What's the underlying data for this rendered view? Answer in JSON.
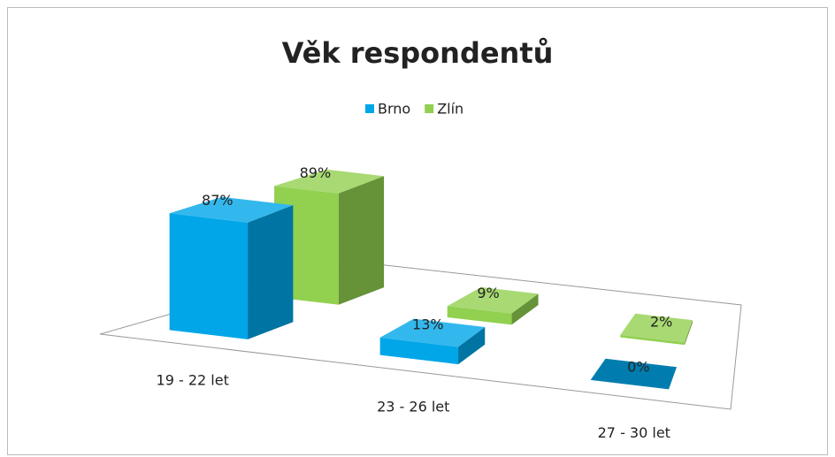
{
  "chart_data": {
    "type": "bar3d",
    "title": "Věk respondentů",
    "categories": [
      "19 - 22 let",
      "23 - 26 let",
      "27 - 30 let"
    ],
    "series": [
      {
        "name": "Brno",
        "color": "#00a6e8",
        "values": [
          87,
          13,
          0
        ],
        "value_labels": [
          "87%",
          "13%",
          "0%"
        ]
      },
      {
        "name": "Zlín",
        "color": "#92d050",
        "values": [
          89,
          9,
          2
        ],
        "value_labels": [
          "89%",
          "9%",
          "2%"
        ]
      }
    ],
    "legend": "top"
  }
}
